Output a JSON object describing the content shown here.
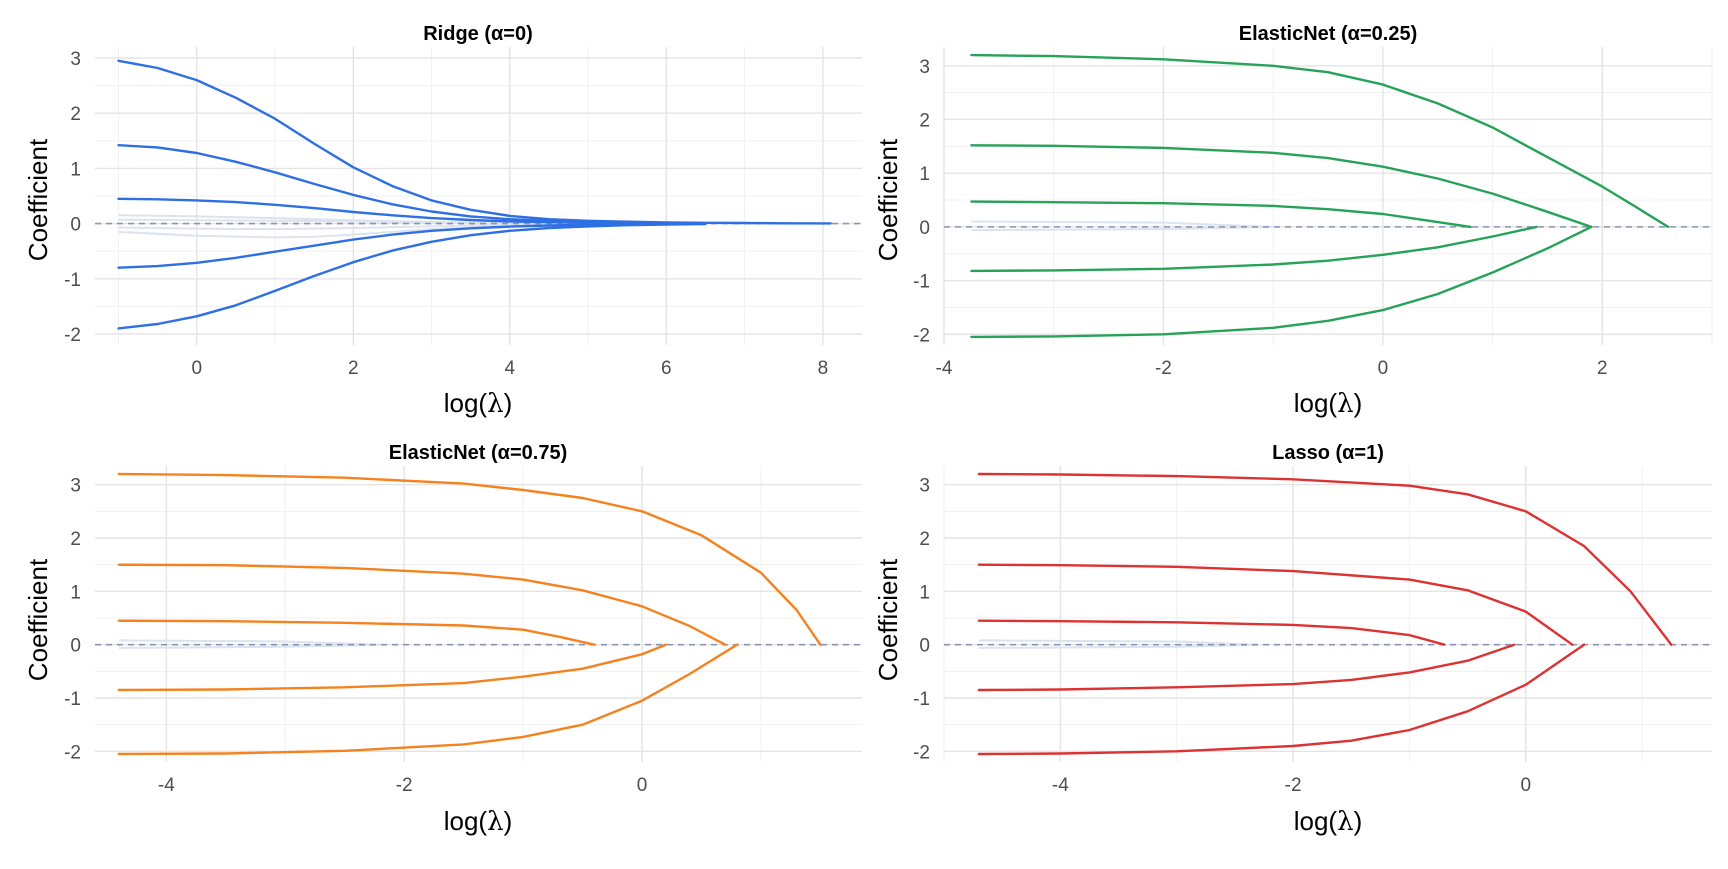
{
  "chart_data": [
    {
      "type": "line",
      "title": "Ridge (α=0)",
      "xlabel": "log(λ)",
      "ylabel": "Coefficient",
      "xlim": [
        -1.3,
        8.5
      ],
      "ylim": [
        -2.2,
        3.2
      ],
      "xticks": [
        0,
        2,
        4,
        6,
        8
      ],
      "yticks": [
        -2,
        -1,
        0,
        1,
        2,
        3
      ],
      "grid": true,
      "color": "#2f6fe4",
      "reference_line": 0,
      "series": [
        {
          "x": [
            -1.0,
            -0.5,
            0,
            0.5,
            1,
            1.5,
            2,
            2.5,
            3,
            3.5,
            4,
            4.5,
            5,
            5.5,
            6,
            6.5,
            7,
            7.5,
            8.1
          ],
          "values": [
            2.95,
            2.82,
            2.6,
            2.28,
            1.9,
            1.45,
            1.02,
            0.68,
            0.42,
            0.25,
            0.14,
            0.08,
            0.05,
            0.035,
            0.02,
            0.015,
            0.01,
            0.006,
            0.003
          ]
        },
        {
          "x": [
            -1.0,
            -0.5,
            0,
            0.5,
            1,
            1.5,
            2,
            2.5,
            3,
            3.5,
            4,
            4.5,
            5,
            5.5,
            6,
            6.5
          ],
          "values": [
            1.42,
            1.38,
            1.28,
            1.12,
            0.93,
            0.72,
            0.52,
            0.35,
            0.22,
            0.13,
            0.08,
            0.05,
            0.03,
            0.02,
            0.012,
            0.007
          ]
        },
        {
          "x": [
            -1.0,
            -0.5,
            0,
            0.5,
            1,
            1.5,
            2,
            2.5,
            3,
            3.5,
            4,
            4.5,
            5,
            5.5,
            6
          ],
          "values": [
            0.45,
            0.44,
            0.42,
            0.39,
            0.34,
            0.28,
            0.21,
            0.15,
            0.1,
            0.065,
            0.04,
            0.025,
            0.015,
            0.009,
            0.005
          ]
        },
        {
          "x": [
            -1.0,
            -0.5,
            0,
            0.5,
            1,
            1.5,
            2,
            2.5,
            3,
            3.5,
            4,
            4.5,
            5,
            5.5,
            6
          ],
          "values": [
            -0.8,
            -0.77,
            -0.71,
            -0.62,
            -0.51,
            -0.4,
            -0.29,
            -0.2,
            -0.13,
            -0.085,
            -0.055,
            -0.035,
            -0.02,
            -0.012,
            -0.006
          ]
        },
        {
          "x": [
            -1.0,
            -0.5,
            0,
            0.5,
            1,
            1.5,
            2,
            2.5,
            3,
            3.5,
            4,
            4.5,
            5,
            5.5,
            6,
            6.5
          ],
          "values": [
            -1.9,
            -1.82,
            -1.68,
            -1.48,
            -1.22,
            -0.95,
            -0.7,
            -0.49,
            -0.33,
            -0.21,
            -0.13,
            -0.08,
            -0.05,
            -0.03,
            -0.018,
            -0.01
          ]
        }
      ],
      "noise_series": [
        {
          "x": [
            -1.0,
            0,
            1,
            1.5,
            2,
            3,
            4,
            5
          ],
          "values": [
            0.15,
            0.13,
            0.1,
            0.08,
            0.06,
            0.03,
            0.01,
            0.0
          ]
        },
        {
          "x": [
            -1.0,
            0,
            1,
            1.5,
            2,
            3,
            4,
            5
          ],
          "values": [
            -0.15,
            -0.22,
            -0.25,
            -0.24,
            -0.2,
            -0.1,
            -0.04,
            0.0
          ]
        },
        {
          "x": [
            -1.0,
            0,
            1,
            2,
            3,
            4,
            5
          ],
          "values": [
            0.07,
            0.06,
            0.05,
            0.04,
            0.02,
            0.01,
            0.0
          ]
        },
        {
          "x": [
            -1.0,
            0,
            1,
            2,
            3,
            4,
            5
          ],
          "values": [
            -0.07,
            -0.09,
            -0.1,
            -0.08,
            -0.05,
            -0.02,
            0.0
          ]
        }
      ]
    },
    {
      "type": "line",
      "title": "ElasticNet (α=0.25)",
      "xlabel": "log(λ)",
      "ylabel": "Coefficient",
      "xlim": [
        -4.0,
        3.0
      ],
      "ylim": [
        -2.2,
        3.35
      ],
      "xticks": [
        -4,
        -2,
        0,
        2
      ],
      "yticks": [
        -2,
        -1,
        0,
        1,
        2,
        3
      ],
      "grid": true,
      "color": "#27a259",
      "reference_line": 0,
      "series": [
        {
          "x": [
            -3.75,
            -3,
            -2,
            -1,
            -0.5,
            0,
            0.5,
            1,
            1.5,
            2,
            2.3,
            2.6
          ],
          "values": [
            3.2,
            3.18,
            3.12,
            3.0,
            2.88,
            2.65,
            2.3,
            1.85,
            1.3,
            0.75,
            0.38,
            0
          ]
        },
        {
          "x": [
            -3.75,
            -3,
            -2,
            -1,
            -0.5,
            0,
            0.5,
            1,
            1.5,
            1.9
          ],
          "values": [
            1.52,
            1.51,
            1.47,
            1.38,
            1.28,
            1.12,
            0.9,
            0.62,
            0.28,
            0
          ]
        },
        {
          "x": [
            -3.75,
            -3,
            -2,
            -1,
            -0.5,
            0,
            0.3,
            0.6,
            0.8
          ],
          "values": [
            0.47,
            0.46,
            0.44,
            0.39,
            0.33,
            0.24,
            0.15,
            0.06,
            0
          ]
        },
        {
          "x": [
            -3.75,
            -3,
            -2,
            -1,
            -0.5,
            0,
            0.5,
            1,
            1.4
          ],
          "values": [
            -0.82,
            -0.81,
            -0.78,
            -0.7,
            -0.63,
            -0.52,
            -0.38,
            -0.18,
            0
          ]
        },
        {
          "x": [
            -3.75,
            -3,
            -2,
            -1,
            -0.5,
            0,
            0.5,
            1,
            1.5,
            1.9
          ],
          "values": [
            -2.05,
            -2.04,
            -2.0,
            -1.88,
            -1.75,
            -1.55,
            -1.25,
            -0.85,
            -0.4,
            0
          ]
        }
      ],
      "noise_series": [
        {
          "x": [
            -3.75,
            -2,
            -1
          ],
          "values": [
            0.1,
            0.08,
            0.0
          ]
        },
        {
          "x": [
            -3.75,
            -2,
            -1
          ],
          "values": [
            -0.06,
            -0.04,
            0.0
          ]
        }
      ]
    },
    {
      "type": "line",
      "title": "ElasticNet (α=0.75)",
      "xlabel": "log(λ)",
      "ylabel": "Coefficient",
      "xlim": [
        -4.6,
        1.85
      ],
      "ylim": [
        -2.2,
        3.35
      ],
      "xticks": [
        -4,
        -2,
        0
      ],
      "yticks": [
        -2,
        -1,
        0,
        1,
        2,
        3
      ],
      "grid": true,
      "color": "#f5821f",
      "reference_line": 0,
      "series": [
        {
          "x": [
            -4.4,
            -3.5,
            -2.5,
            -1.5,
            -1,
            -0.5,
            0,
            0.5,
            1,
            1.3,
            1.5
          ],
          "values": [
            3.2,
            3.18,
            3.13,
            3.02,
            2.9,
            2.75,
            2.5,
            2.05,
            1.35,
            0.65,
            0
          ]
        },
        {
          "x": [
            -4.4,
            -3.5,
            -2.5,
            -1.5,
            -1,
            -0.5,
            0,
            0.4,
            0.7
          ],
          "values": [
            1.5,
            1.49,
            1.44,
            1.33,
            1.22,
            1.02,
            0.72,
            0.35,
            0
          ]
        },
        {
          "x": [
            -4.4,
            -3.5,
            -2.5,
            -1.5,
            -1,
            -0.7,
            -0.4
          ],
          "values": [
            0.45,
            0.44,
            0.41,
            0.36,
            0.28,
            0.15,
            0
          ]
        },
        {
          "x": [
            -4.4,
            -3.5,
            -2.5,
            -1.5,
            -1,
            -0.5,
            0,
            0.2
          ],
          "values": [
            -0.85,
            -0.84,
            -0.8,
            -0.72,
            -0.6,
            -0.45,
            -0.18,
            0
          ]
        },
        {
          "x": [
            -4.4,
            -3.5,
            -2.5,
            -1.5,
            -1,
            -0.5,
            0,
            0.4,
            0.8
          ],
          "values": [
            -2.05,
            -2.04,
            -1.99,
            -1.87,
            -1.73,
            -1.5,
            -1.05,
            -0.55,
            0
          ]
        }
      ],
      "noise_series": [
        {
          "x": [
            -4.4,
            -3,
            -2.2
          ],
          "values": [
            0.08,
            0.06,
            0.0
          ]
        },
        {
          "x": [
            -4.4,
            -3,
            -2.2
          ],
          "values": [
            -0.06,
            -0.04,
            0.0
          ]
        }
      ]
    },
    {
      "type": "line",
      "title": "Lasso (α=1)",
      "xlabel": "log(λ)",
      "ylabel": "Coefficient",
      "xlim": [
        -5.0,
        1.6
      ],
      "ylim": [
        -2.2,
        3.35
      ],
      "xticks": [
        -4,
        -2,
        0
      ],
      "yticks": [
        -2,
        -1,
        0,
        1,
        2,
        3
      ],
      "grid": true,
      "color": "#dd3232",
      "reference_line": 0,
      "series": [
        {
          "x": [
            -4.7,
            -4,
            -3,
            -2,
            -1,
            -0.5,
            0,
            0.5,
            0.9,
            1.25
          ],
          "values": [
            3.2,
            3.19,
            3.16,
            3.1,
            2.98,
            2.82,
            2.5,
            1.85,
            1.0,
            0
          ]
        },
        {
          "x": [
            -4.7,
            -4,
            -3,
            -2,
            -1,
            -0.5,
            0,
            0.4
          ],
          "values": [
            1.5,
            1.49,
            1.46,
            1.38,
            1.22,
            1.02,
            0.62,
            0
          ]
        },
        {
          "x": [
            -4.7,
            -4,
            -3,
            -2,
            -1.5,
            -1,
            -0.7
          ],
          "values": [
            0.45,
            0.44,
            0.42,
            0.37,
            0.31,
            0.18,
            0
          ]
        },
        {
          "x": [
            -4.7,
            -4,
            -3,
            -2,
            -1.5,
            -1,
            -0.5,
            -0.1
          ],
          "values": [
            -0.85,
            -0.84,
            -0.8,
            -0.74,
            -0.66,
            -0.52,
            -0.3,
            0
          ]
        },
        {
          "x": [
            -4.7,
            -4,
            -3,
            -2,
            -1.5,
            -1,
            -0.5,
            0,
            0.5
          ],
          "values": [
            -2.05,
            -2.04,
            -2.0,
            -1.9,
            -1.8,
            -1.6,
            -1.25,
            -0.75,
            0
          ]
        }
      ],
      "noise_series": [
        {
          "x": [
            -4.7,
            -3,
            -2.3
          ],
          "values": [
            0.08,
            0.06,
            0.0
          ]
        },
        {
          "x": [
            -4.7,
            -3,
            -2.3
          ],
          "values": [
            -0.06,
            -0.04,
            0.0
          ]
        }
      ]
    }
  ]
}
